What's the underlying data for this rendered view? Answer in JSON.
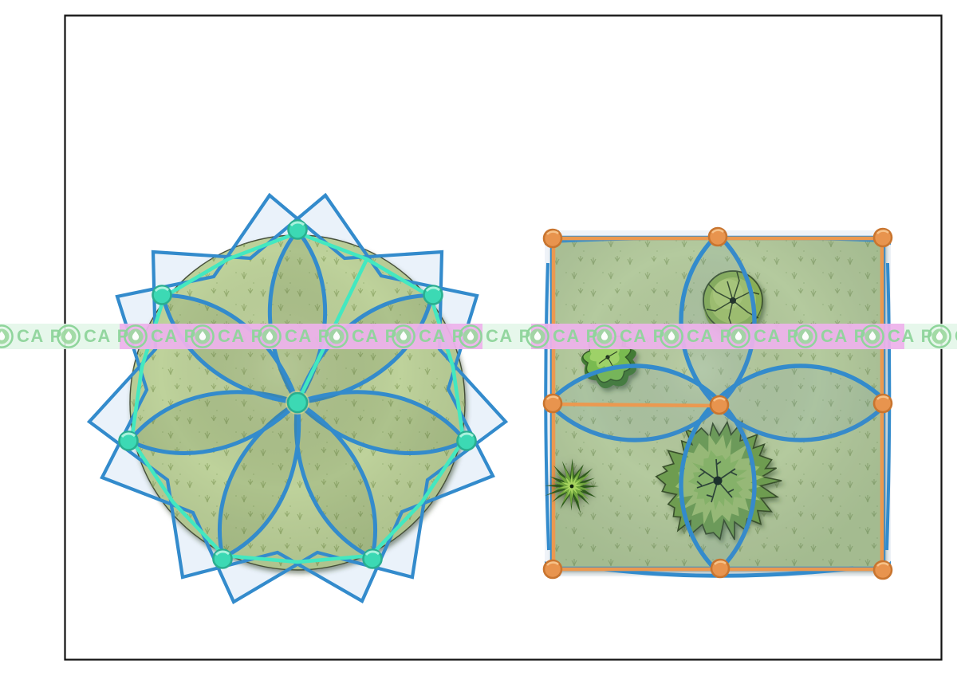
{
  "watermark": {
    "unit_text": "CA P",
    "word": "POCA",
    "repeat": 16,
    "band_color": "#e2f6e8",
    "overlay_pink": "#f578ee",
    "text_color": "#8fd59b"
  },
  "canvas": {
    "background": "#ffffff",
    "border_color": "#111111"
  },
  "palette": {
    "blue_outline": "#338bcc",
    "teal_accent": "#43e8c0",
    "teal_handle": "#3cd9b4",
    "orange_accent": "#eb9950",
    "orange_handle": "#e8944e",
    "lawn_green": "#bed29b",
    "grass_mark": "#87a15f",
    "tree_green": "#9ec253",
    "bush_green": "#7cc044",
    "magenta_tint": "#ef5fe3"
  }
}
